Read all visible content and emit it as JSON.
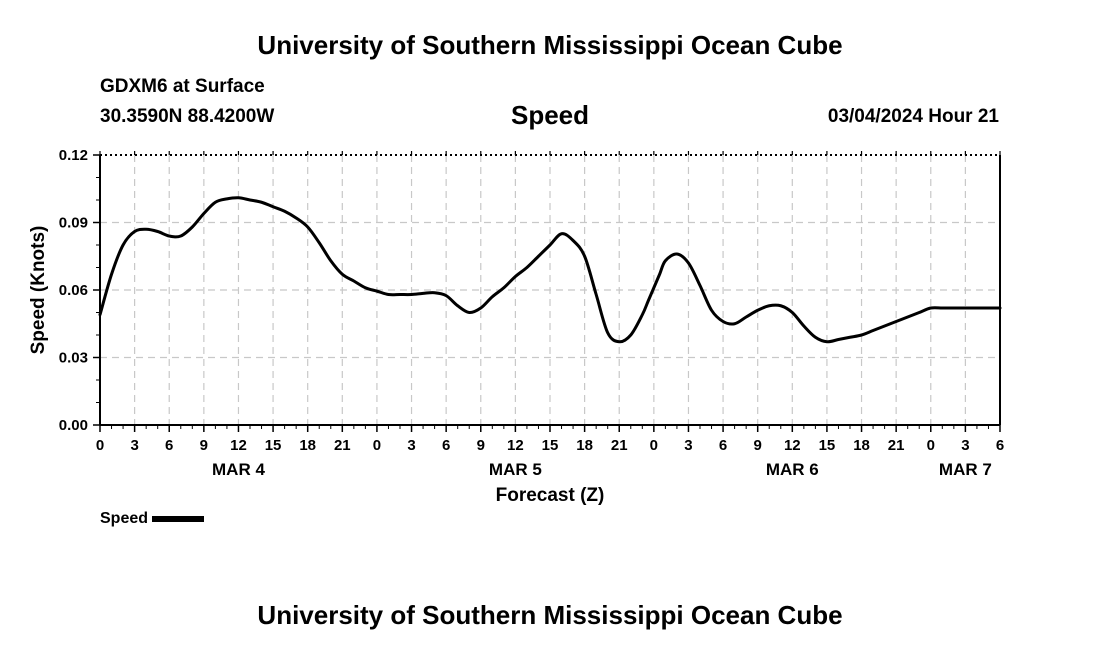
{
  "header": {
    "title_top": "University of Southern Mississippi Ocean Cube",
    "station": "GDXM6 at Surface",
    "coords": "30.3590N  88.4200W",
    "plot_title": "Speed",
    "datetime": "03/04/2024 Hour 21",
    "title_bottom": "University of Southern Mississippi Ocean Cube"
  },
  "legend": {
    "label": "Speed",
    "color": "#000000"
  },
  "chart_data": {
    "type": "line",
    "title": "Speed",
    "xlabel": "Forecast (Z)",
    "ylabel": "Speed (Knots)",
    "xlim": [
      0,
      78
    ],
    "ylim": [
      0,
      0.12
    ],
    "grid": true,
    "y_ticks": [
      "0.00",
      "0.03",
      "0.06",
      "0.09",
      "0.12"
    ],
    "x_tick_labels": [
      "0",
      "3",
      "6",
      "9",
      "12",
      "15",
      "18",
      "21",
      "0",
      "3",
      "6",
      "9",
      "12",
      "15",
      "18",
      "21",
      "0",
      "3",
      "6",
      "9",
      "12",
      "15",
      "18",
      "21",
      "0",
      "3",
      "6"
    ],
    "day_labels": [
      {
        "hour": 12,
        "label": "MAR 4"
      },
      {
        "hour": 36,
        "label": "MAR 5"
      },
      {
        "hour": 60,
        "label": "MAR 6"
      },
      {
        "hour": 75,
        "label": "MAR 7"
      }
    ],
    "series": [
      {
        "name": "Speed",
        "x": [
          0,
          1,
          2,
          3,
          4,
          5,
          6,
          7,
          8,
          9,
          10,
          11,
          12,
          13,
          14,
          15,
          16,
          17,
          18,
          19,
          20,
          21,
          22,
          23,
          24,
          25,
          26,
          27,
          28,
          29,
          30,
          31,
          32,
          33,
          34,
          35,
          36,
          37,
          38,
          39,
          40,
          41,
          42,
          43,
          44,
          45,
          46,
          47,
          47.5,
          48,
          48.5,
          49,
          50,
          51,
          52,
          53,
          54,
          55,
          56,
          57,
          58,
          59,
          60,
          61,
          62,
          63,
          64,
          65,
          66,
          67,
          68,
          69,
          70,
          71,
          72,
          73,
          74,
          75,
          76,
          77,
          78
        ],
        "values": [
          0.049,
          0.067,
          0.08,
          0.086,
          0.087,
          0.086,
          0.084,
          0.084,
          0.088,
          0.094,
          0.099,
          0.1005,
          0.101,
          0.1,
          0.099,
          0.097,
          0.095,
          0.092,
          0.088,
          0.081,
          0.073,
          0.067,
          0.064,
          0.061,
          0.0595,
          0.058,
          0.058,
          0.058,
          0.0585,
          0.0588,
          0.0575,
          0.053,
          0.05,
          0.052,
          0.057,
          0.061,
          0.066,
          0.07,
          0.075,
          0.08,
          0.085,
          0.082,
          0.075,
          0.058,
          0.041,
          0.037,
          0.04,
          0.049,
          0.055,
          0.061,
          0.067,
          0.073,
          0.076,
          0.072,
          0.062,
          0.051,
          0.046,
          0.045,
          0.048,
          0.051,
          0.053,
          0.053,
          0.05,
          0.044,
          0.039,
          0.037,
          0.038,
          0.039,
          0.04,
          0.042,
          0.044,
          0.046,
          0.048,
          0.05,
          0.052,
          0.052,
          0.052,
          0.052,
          0.052,
          0.052,
          0.052
        ]
      }
    ]
  }
}
